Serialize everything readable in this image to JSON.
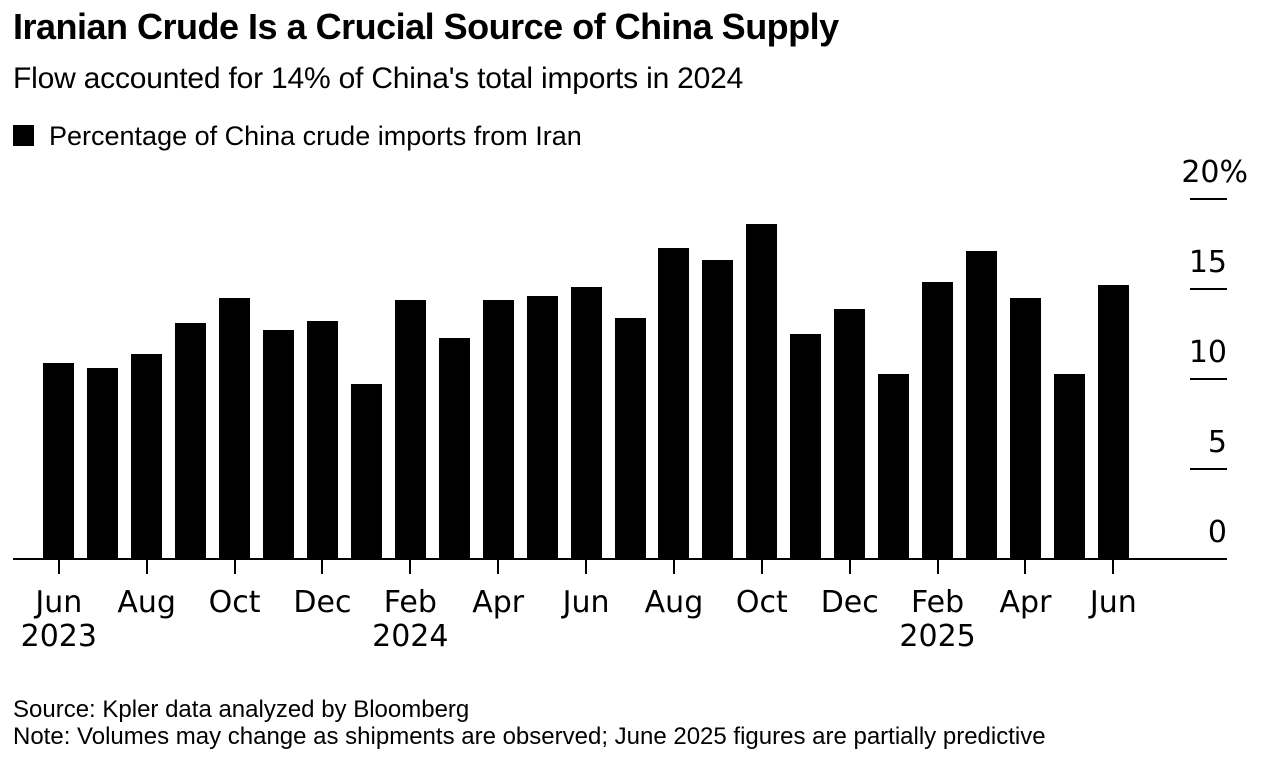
{
  "page": {
    "background_color": "#ffffff",
    "bar_color": "#000000",
    "text_color": "#000000"
  },
  "header": {
    "title": "Iranian Crude Is a Crucial Source of China Supply",
    "subtitle": "Flow accounted for 14% of China's total imports in 2024"
  },
  "legend": {
    "marker_color": "#000000",
    "label": "Percentage of China crude imports from Iran"
  },
  "chart_data": {
    "type": "bar",
    "title": "Iranian Crude Is a Crucial Source of China Supply",
    "subtitle": "Flow accounted for 14% of China's total imports in 2024",
    "series_name": "Percentage of China crude imports from Iran",
    "unit": "%",
    "bar_color": "#000000",
    "grid": false,
    "legend_position": "top-left",
    "yaxis_position": "right",
    "ylim": [
      0,
      20
    ],
    "yticks": [
      0,
      5,
      10,
      15,
      20
    ],
    "ytick_labels": [
      "0",
      "5",
      "10",
      "15",
      "20%"
    ],
    "categories": [
      "Jun 2023",
      "Jul 2023",
      "Aug 2023",
      "Sep 2023",
      "Oct 2023",
      "Nov 2023",
      "Dec 2023",
      "Jan 2024",
      "Feb 2024",
      "Mar 2024",
      "Apr 2024",
      "May 2024",
      "Jun 2024",
      "Jul 2024",
      "Aug 2024",
      "Sep 2024",
      "Oct 2024",
      "Nov 2024",
      "Dec 2024",
      "Jan 2025",
      "Feb 2025",
      "Mar 2025",
      "Apr 2025",
      "May 2025",
      "Jun 2025"
    ],
    "values": [
      10.9,
      10.6,
      11.4,
      13.1,
      14.5,
      12.7,
      13.2,
      9.7,
      14.4,
      12.3,
      14.4,
      14.6,
      15.1,
      13.4,
      17.3,
      16.6,
      18.6,
      12.5,
      13.9,
      10.3,
      15.4,
      17.1,
      14.5,
      10.3,
      15.2
    ],
    "xticks": [
      {
        "index": 0,
        "month": "Jun",
        "year": "2023"
      },
      {
        "index": 2,
        "month": "Aug"
      },
      {
        "index": 4,
        "month": "Oct"
      },
      {
        "index": 6,
        "month": "Dec"
      },
      {
        "index": 8,
        "month": "Feb",
        "year": "2024"
      },
      {
        "index": 10,
        "month": "Apr"
      },
      {
        "index": 12,
        "month": "Jun"
      },
      {
        "index": 14,
        "month": "Aug"
      },
      {
        "index": 16,
        "month": "Oct"
      },
      {
        "index": 18,
        "month": "Dec"
      },
      {
        "index": 20,
        "month": "Feb",
        "year": "2025"
      },
      {
        "index": 22,
        "month": "Apr"
      },
      {
        "index": 24,
        "month": "Jun"
      }
    ]
  },
  "footer": {
    "source": "Source: Kpler data analyzed by Bloomberg",
    "note": "Note: Volumes may change as shipments are observed; June 2025 figures are partially predictive"
  }
}
